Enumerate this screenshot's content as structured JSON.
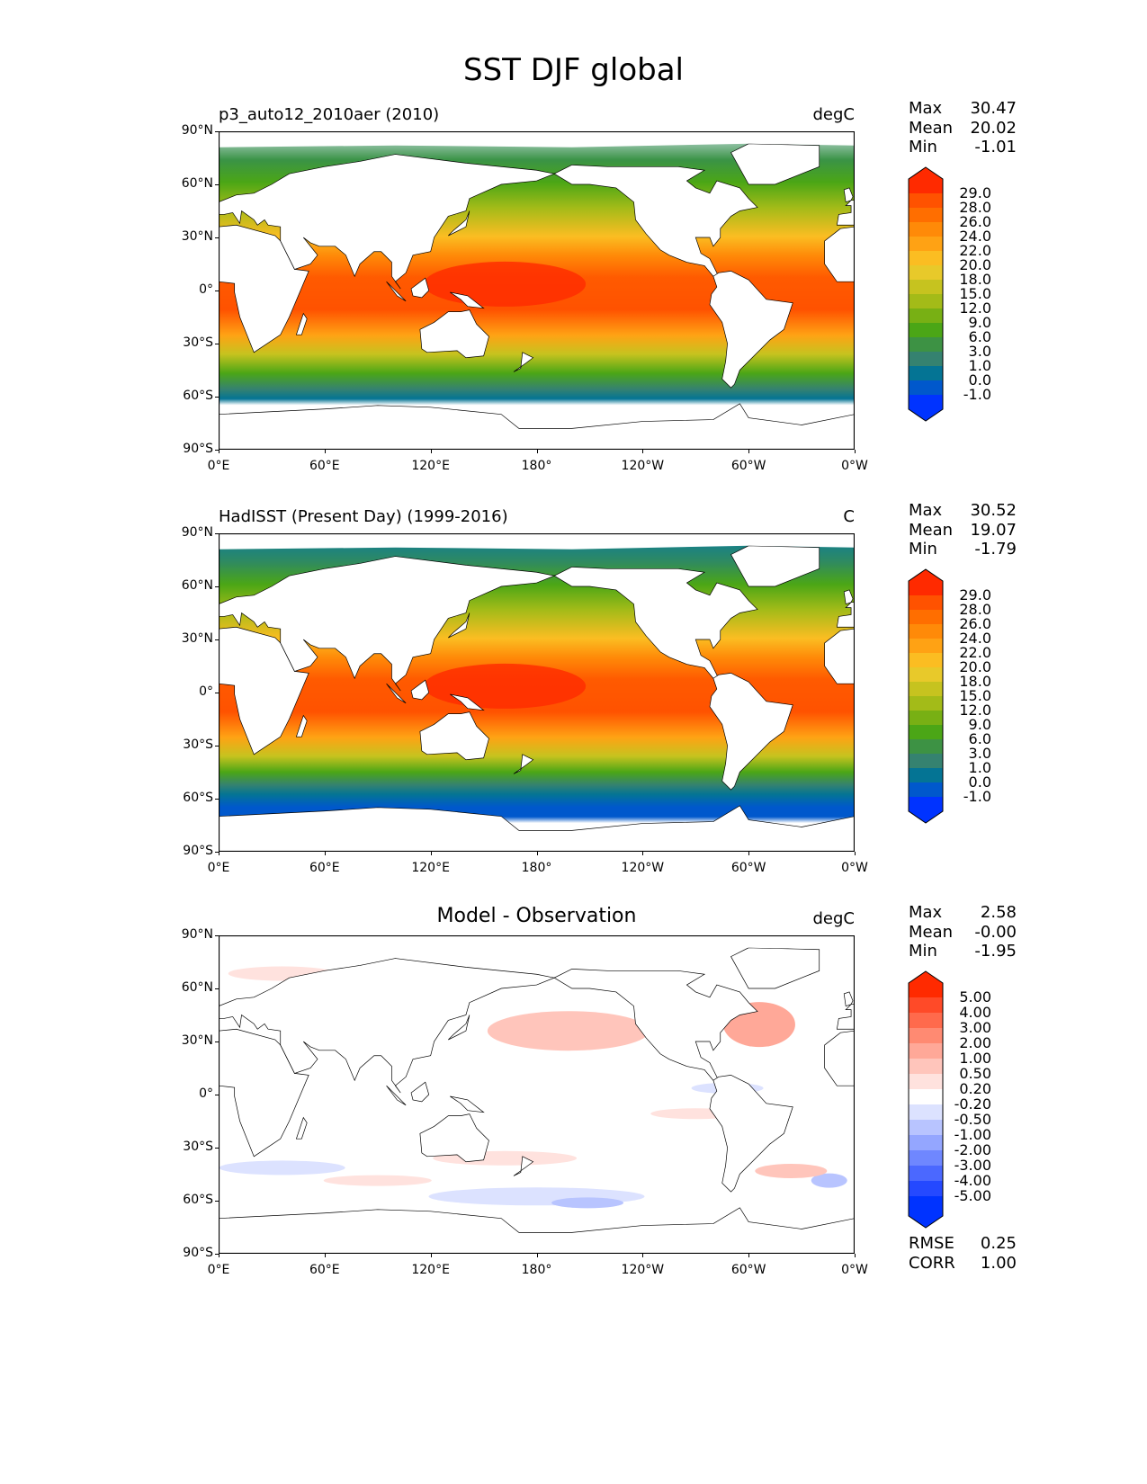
{
  "figure_title": "SST DJF global",
  "chart_data": [
    {
      "type": "heatmap",
      "title_left": "p3_auto12_2010aer (2010)",
      "units": "degC",
      "stats": {
        "max": "30.47",
        "mean": "20.02",
        "min": "-1.01"
      },
      "colorbar": {
        "levels": [
          "29.0",
          "28.0",
          "26.0",
          "24.0",
          "22.0",
          "20.0",
          "18.0",
          "15.0",
          "12.0",
          "9.0",
          "6.0",
          "3.0",
          "1.0",
          "0.0",
          "-1.0"
        ],
        "colors": [
          "#ff2a00",
          "#ff5200",
          "#ff6e00",
          "#ff8a08",
          "#ffa214",
          "#fbbd22",
          "#e8c92a",
          "#c6c31f",
          "#a3bb18",
          "#78b014",
          "#4ba616",
          "#3d9244",
          "#358270",
          "#047494",
          "#0058cc",
          "#0033ff"
        ]
      },
      "gradient": [
        [
          "#cfe2e8",
          0
        ],
        [
          "#3a9346",
          9
        ],
        [
          "#4ba616",
          16
        ],
        [
          "#a3bb18",
          24
        ],
        [
          "#fbbd22",
          33
        ],
        [
          "#ff8a08",
          39
        ],
        [
          "#ff5a00",
          46
        ],
        [
          "#ff5200",
          56
        ],
        [
          "#ffa214",
          64
        ],
        [
          "#c6c31f",
          70
        ],
        [
          "#4ba616",
          76
        ],
        [
          "#358270",
          81
        ],
        [
          "#047494",
          84
        ],
        [
          "#ffffff",
          86
        ]
      ]
    },
    {
      "type": "heatmap",
      "title_left": "HadISST (Present Day) (1999-2016)",
      "units": "C",
      "stats": {
        "max": "30.52",
        "mean": "19.07",
        "min": "-1.79"
      },
      "colorbar": {
        "levels": [
          "29.0",
          "28.0",
          "26.0",
          "24.0",
          "22.0",
          "20.0",
          "18.0",
          "15.0",
          "12.0",
          "9.0",
          "6.0",
          "3.0",
          "1.0",
          "0.0",
          "-1.0"
        ],
        "colors": [
          "#ff2a00",
          "#ff5200",
          "#ff6e00",
          "#ff8a08",
          "#ffa214",
          "#fbbd22",
          "#e8c92a",
          "#c6c31f",
          "#a3bb18",
          "#78b014",
          "#4ba616",
          "#3d9244",
          "#358270",
          "#047494",
          "#0058cc",
          "#0033ff"
        ]
      },
      "gradient": [
        [
          "#0a7aa0",
          0
        ],
        [
          "#2f8a60",
          9
        ],
        [
          "#4ba616",
          16
        ],
        [
          "#a3bb18",
          24
        ],
        [
          "#fbbd22",
          33
        ],
        [
          "#ff8a08",
          39
        ],
        [
          "#ff5a00",
          46
        ],
        [
          "#ff5200",
          56
        ],
        [
          "#ffa214",
          64
        ],
        [
          "#c6c31f",
          70
        ],
        [
          "#4ba616",
          75
        ],
        [
          "#358270",
          79
        ],
        [
          "#047494",
          82
        ],
        [
          "#0058cc",
          86
        ],
        [
          "#0058cc",
          89
        ],
        [
          "#ffffff",
          91
        ]
      ]
    },
    {
      "type": "heatmap",
      "title_center": "Model - Observation",
      "units": "degC",
      "stats": {
        "max": "2.58",
        "mean": "-0.00",
        "min": "-1.95"
      },
      "rmse": "0.25",
      "corr": "1.00",
      "colorbar": {
        "levels": [
          "5.00",
          "4.00",
          "3.00",
          "2.00",
          "1.00",
          "0.50",
          "0.20",
          "-0.20",
          "-0.50",
          "-1.00",
          "-2.00",
          "-3.00",
          "-4.00",
          "-5.00"
        ],
        "colors": [
          "#ff2a00",
          "#ff4a28",
          "#ff6a4c",
          "#ff8a72",
          "#ffa898",
          "#ffc5bb",
          "#ffe2de",
          "#ffffff",
          "#dce2ff",
          "#b8c4ff",
          "#94a6ff",
          "#6f87ff",
          "#4b68ff",
          "#2549ff",
          "#0033ff"
        ]
      }
    }
  ],
  "axes": {
    "lat_ticks": [
      "90°N",
      "60°N",
      "30°N",
      "0°",
      "30°S",
      "60°S",
      "90°S"
    ],
    "lon_ticks": [
      "0°E",
      "60°E",
      "120°E",
      "180°",
      "120°W",
      "60°W",
      "0°W"
    ]
  },
  "labels": {
    "max": "Max",
    "mean": "Mean",
    "min": "Min",
    "rmse": "RMSE",
    "corr": "CORR"
  }
}
